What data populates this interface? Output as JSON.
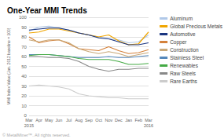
{
  "chart_data": {
    "type": "line",
    "title": "One-Year MMI Trends",
    "ylabel": "MMI Index Value (Jan. 2012 baseline = 100)",
    "footnote": "© MetalMiner™. All rights reserved.",
    "categories": [
      "Mar\n2015",
      "Apr",
      "May",
      "Jun",
      "Jul",
      "Aug",
      "Sep",
      "Oct",
      "Nov",
      "Dec",
      "Jan",
      "Feb",
      "Mar\n2016"
    ],
    "ylim": [
      0,
      100
    ],
    "yticks": [
      0,
      10,
      20,
      30,
      40,
      50,
      60,
      70,
      80,
      90,
      100
    ],
    "grid": true,
    "legend": "right",
    "series": [
      {
        "name": "Aluminum",
        "color": "#b0c8e8",
        "values": [
          86,
          90,
          91,
          89,
          87,
          84,
          82,
          80,
          78,
          77,
          74,
          75,
          82
        ]
      },
      {
        "name": "Global Precious Metals",
        "color": "#f0a500",
        "values": [
          84,
          85,
          88,
          88,
          86,
          84,
          82,
          80,
          82,
          76,
          72,
          73,
          85
        ]
      },
      {
        "name": "Automotive",
        "color": "#1a3580",
        "values": [
          87,
          88,
          89,
          89,
          87,
          84,
          82,
          79,
          78,
          75,
          72,
          72,
          74
        ]
      },
      {
        "name": "Copper",
        "color": "#d4813a",
        "values": [
          80,
          74,
          76,
          77,
          73,
          68,
          67,
          66,
          70,
          66,
          63,
          64,
          67
        ]
      },
      {
        "name": "Construction",
        "color": "#c8a878",
        "values": [
          77,
          75,
          77,
          77,
          74,
          68,
          65,
          63,
          65,
          63,
          60,
          62,
          64
        ]
      },
      {
        "name": "Stainless Steel",
        "color": "#5588bb",
        "values": [
          62,
          62,
          62,
          61,
          60,
          59,
          59,
          59,
          60,
          59,
          59,
          60,
          61
        ]
      },
      {
        "name": "Renewables",
        "color": "#44aa44",
        "values": [
          61,
          62,
          62,
          61,
          60,
          58,
          57,
          57,
          57,
          55,
          52,
          52,
          53
        ]
      },
      {
        "name": "Raw Steels",
        "color": "#888888",
        "values": [
          60,
          60,
          59,
          59,
          58,
          55,
          50,
          47,
          45,
          47,
          47,
          48,
          48
        ]
      },
      {
        "name": "Rare Earths",
        "color": "#cccccc",
        "values": [
          30,
          31,
          30,
          29,
          27,
          22,
          20,
          19,
          18,
          18,
          17,
          17,
          17
        ]
      }
    ]
  }
}
